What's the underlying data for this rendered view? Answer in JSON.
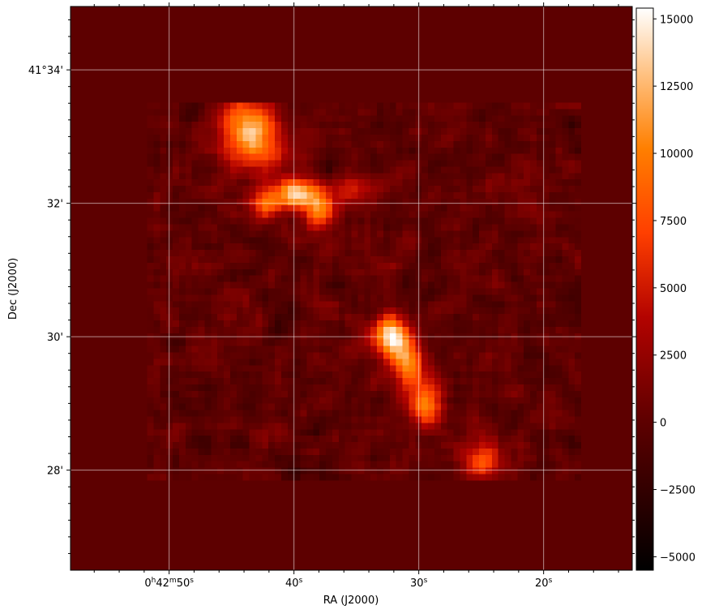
{
  "chart_data": {
    "type": "heatmap",
    "title": "",
    "xlabel": "RA (J2000)",
    "ylabel": "Dec (J2000)",
    "x_ticks": [
      {
        "value_s": 50,
        "label_main": "0",
        "label_sup1": "h",
        "label_mid": "42",
        "label_sup2": "m",
        "label_sec": "50",
        "label_sup3": "s"
      },
      {
        "value_s": 40,
        "label_main": "",
        "label_sup1": "",
        "label_mid": "",
        "label_sup2": "",
        "label_sec": "40",
        "label_sup3": "s"
      },
      {
        "value_s": 30,
        "label_main": "",
        "label_sup1": "",
        "label_mid": "",
        "label_sup2": "",
        "label_sec": "30",
        "label_sup3": "s"
      },
      {
        "value_s": 20,
        "label_main": "",
        "label_sup1": "",
        "label_mid": "",
        "label_sup2": "",
        "label_sec": "20",
        "label_sup3": "s"
      }
    ],
    "y_ticks": [
      {
        "value_arcmin": 34,
        "label": "41°34'"
      },
      {
        "value_arcmin": 32,
        "label": "32'"
      },
      {
        "value_arcmin": 30,
        "label": "30'"
      },
      {
        "value_arcmin": 28,
        "label": "28'"
      }
    ],
    "x_range_s": [
      57.9,
      12.9
    ],
    "y_range_arcmin": [
      26.5,
      34.95
    ],
    "grid": true,
    "colormap": "gist_heat",
    "colorbar": {
      "min": -5500,
      "max": 15400,
      "ticks": [
        -5000,
        -2500,
        0,
        2500,
        5000,
        7500,
        10000,
        12500,
        15000
      ],
      "labels": [
        "−5000",
        "−2500",
        "0",
        "2500",
        "5000",
        "7500",
        "10000",
        "12500",
        "15000"
      ]
    },
    "image": {
      "nx": 88,
      "ny": 88,
      "background_value": 0,
      "noise_amplitude": 1600,
      "data_region": {
        "ra_s": [
          52.0,
          17.0
        ],
        "dec_arcmin": [
          27.8,
          33.5
        ]
      },
      "sources": [
        {
          "ra_s": 44.0,
          "dec_arcmin": 33.15,
          "peak": 10500,
          "sigma_ra_s": 1.4,
          "sigma_dec_arcmin": 0.33
        },
        {
          "ra_s": 42.5,
          "dec_arcmin": 32.85,
          "peak": 5500,
          "sigma_ra_s": 1.5,
          "sigma_dec_arcmin": 0.3
        },
        {
          "ra_s": 39.8,
          "dec_arcmin": 32.15,
          "peak": 14000,
          "sigma_ra_s": 1.1,
          "sigma_dec_arcmin": 0.15
        },
        {
          "ra_s": 37.8,
          "dec_arcmin": 31.9,
          "peak": 10500,
          "sigma_ra_s": 0.9,
          "sigma_dec_arcmin": 0.18
        },
        {
          "ra_s": 42.2,
          "dec_arcmin": 32.0,
          "peak": 9000,
          "sigma_ra_s": 0.9,
          "sigma_dec_arcmin": 0.18
        },
        {
          "ra_s": 35.5,
          "dec_arcmin": 32.2,
          "peak": 5000,
          "sigma_ra_s": 1.2,
          "sigma_dec_arcmin": 0.15
        },
        {
          "ra_s": 32.2,
          "dec_arcmin": 30.0,
          "peak": 15300,
          "sigma_ra_s": 1.0,
          "sigma_dec_arcmin": 0.22
        },
        {
          "ra_s": 30.8,
          "dec_arcmin": 29.6,
          "peak": 10000,
          "sigma_ra_s": 0.9,
          "sigma_dec_arcmin": 0.22
        },
        {
          "ra_s": 29.5,
          "dec_arcmin": 29.0,
          "peak": 11000,
          "sigma_ra_s": 0.9,
          "sigma_dec_arcmin": 0.25
        },
        {
          "ra_s": 24.8,
          "dec_arcmin": 28.15,
          "peak": 8500,
          "sigma_ra_s": 1.0,
          "sigma_dec_arcmin": 0.2
        }
      ]
    }
  }
}
